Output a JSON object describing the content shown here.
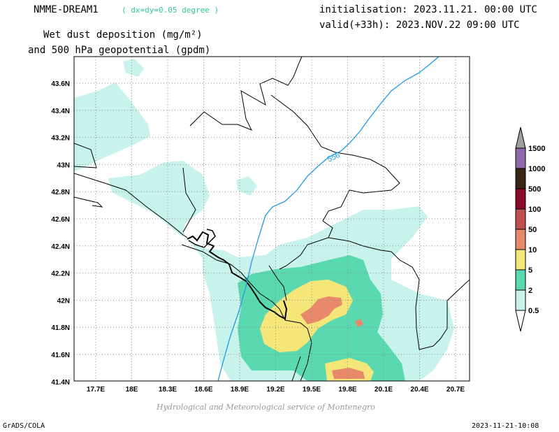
{
  "header": {
    "model": "NMME-DREAM1",
    "resolution": "( dx=dy=0.05 degree )",
    "title_line1": "Wet dust deposition (mg/m²)",
    "title_line2": "and 500 hPa geopotential (gpdm)",
    "init": "initialisation: 2023.11.21. 00:00 UTC",
    "valid": "valid(+33h): 2023.NOV.22 09:00 UTC"
  },
  "map": {
    "lat_labels": [
      "43.6N",
      "43.4N",
      "43.2N",
      "43N",
      "42.8N",
      "42.6N",
      "42.4N",
      "42.2N",
      "42N",
      "41.8N",
      "41.6N",
      "41.4N"
    ],
    "lon_labels": [
      "17.7E",
      "18E",
      "18.3E",
      "18.6E",
      "18.9E",
      "19.2E",
      "19.5E",
      "19.8E",
      "20.1E",
      "20.4E",
      "20.7E"
    ],
    "contour_label": "556",
    "colors": {
      "c0_5": "#c8f2ec",
      "c2": "#5ad9b0",
      "c5": "#f5e67a",
      "c10": "#e8896b",
      "c50": "#c0504d",
      "c100": "#8b0a2a",
      "c500": "#3a2616",
      "c1000": "#8f6aa8",
      "c1500": "#a0a0a0",
      "contour": "#1e9ae0"
    }
  },
  "colorbar": {
    "labels": [
      "1500",
      "1000",
      "500",
      "100",
      "50",
      "10",
      "5",
      "2",
      "0.5"
    ]
  },
  "footer": {
    "credit": "Hydrological and Meteorological service of Montenegro",
    "left": "GrADS/COLA",
    "right": "2023-11-21-10:08"
  }
}
